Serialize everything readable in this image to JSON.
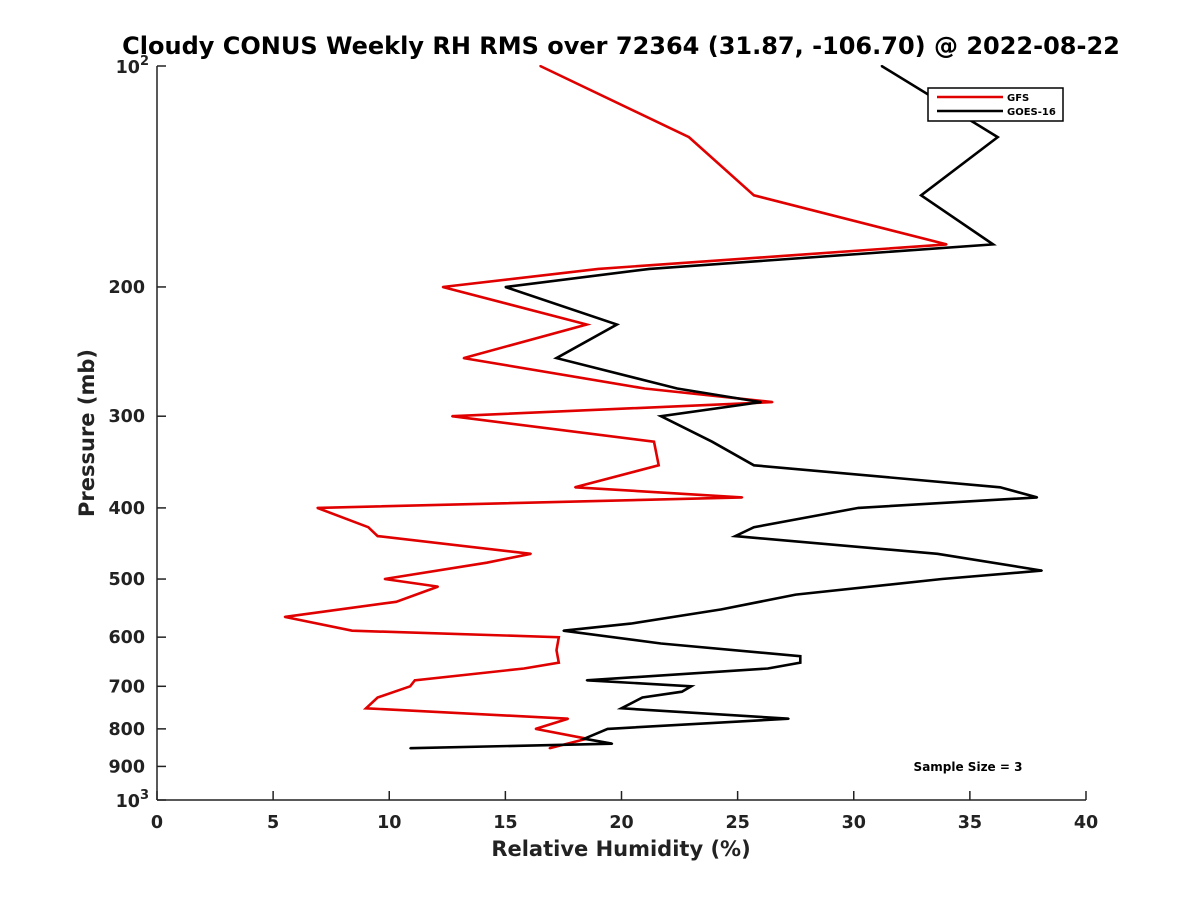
{
  "chart_data": {
    "type": "line",
    "title": "Cloudy CONUS Weekly RH RMS over 72364 (31.87, -106.70) @ 2022-08-22",
    "xlabel": "Relative Humidity (%)",
    "ylabel": "Pressure (mb)",
    "xlim": [
      0,
      40
    ],
    "ylim": [
      1000,
      100
    ],
    "y_scale": "log",
    "y_reversed": true,
    "x_ticks": [
      "0",
      "5",
      "10",
      "15",
      "20",
      "25",
      "30",
      "35",
      "40"
    ],
    "y_ticks": [
      {
        "value": 100,
        "base": "10",
        "sup": "2"
      },
      {
        "value": 200,
        "label": "200"
      },
      {
        "value": 300,
        "label": "300"
      },
      {
        "value": 400,
        "label": "400"
      },
      {
        "value": 500,
        "label": "500"
      },
      {
        "value": 600,
        "label": "600"
      },
      {
        "value": 700,
        "label": "700"
      },
      {
        "value": 800,
        "label": "800"
      },
      {
        "value": 900,
        "label": "900"
      },
      {
        "value": 1000,
        "base": "10",
        "sup": "3"
      }
    ],
    "legend_position": "top-right",
    "annotation": "Sample Size = 3",
    "series": [
      {
        "name": "GFS",
        "color": "#e00000",
        "points": [
          [
            16.5,
            100
          ],
          [
            22.9,
            125
          ],
          [
            25.7,
            150
          ],
          [
            34.0,
            175
          ],
          [
            19.0,
            189
          ],
          [
            12.3,
            200
          ],
          [
            18.5,
            225
          ],
          [
            13.2,
            250
          ],
          [
            21.0,
            275
          ],
          [
            26.5,
            287
          ],
          [
            12.7,
            300
          ],
          [
            21.4,
            325
          ],
          [
            21.6,
            350
          ],
          [
            18.0,
            375
          ],
          [
            25.2,
            387
          ],
          [
            6.9,
            400
          ],
          [
            9.1,
            425
          ],
          [
            9.5,
            437
          ],
          [
            16.1,
            462
          ],
          [
            14.2,
            475
          ],
          [
            9.8,
            500
          ],
          [
            12.1,
            512
          ],
          [
            10.3,
            537
          ],
          [
            5.5,
            563
          ],
          [
            8.4,
            588
          ],
          [
            17.3,
            600
          ],
          [
            17.2,
            625
          ],
          [
            17.3,
            650
          ],
          [
            15.8,
            662
          ],
          [
            11.1,
            687
          ],
          [
            10.9,
            700
          ],
          [
            9.5,
            725
          ],
          [
            9.0,
            750
          ],
          [
            17.7,
            775
          ],
          [
            16.3,
            800
          ],
          [
            18.5,
            825
          ],
          [
            16.9,
            850
          ]
        ]
      },
      {
        "name": "GOES-16",
        "color": "#000000",
        "points": [
          [
            31.2,
            100
          ],
          [
            36.2,
            125
          ],
          [
            32.9,
            150
          ],
          [
            36.0,
            175
          ],
          [
            21.2,
            189
          ],
          [
            15.0,
            200
          ],
          [
            19.8,
            225
          ],
          [
            17.2,
            250
          ],
          [
            22.4,
            275
          ],
          [
            26.0,
            287
          ],
          [
            21.7,
            300
          ],
          [
            23.9,
            325
          ],
          [
            25.7,
            350
          ],
          [
            36.3,
            375
          ],
          [
            37.9,
            387
          ],
          [
            30.2,
            400
          ],
          [
            25.7,
            425
          ],
          [
            24.9,
            437
          ],
          [
            33.6,
            462
          ],
          [
            38.1,
            487
          ],
          [
            33.8,
            500
          ],
          [
            27.5,
            525
          ],
          [
            24.3,
            550
          ],
          [
            20.4,
            575
          ],
          [
            17.5,
            588
          ],
          [
            21.7,
            612
          ],
          [
            27.7,
            637
          ],
          [
            27.7,
            650
          ],
          [
            26.3,
            662
          ],
          [
            18.5,
            687
          ],
          [
            23.0,
            700
          ],
          [
            22.6,
            712
          ],
          [
            20.9,
            725
          ],
          [
            20.0,
            750
          ],
          [
            27.2,
            775
          ],
          [
            19.4,
            800
          ],
          [
            18.4,
            825
          ],
          [
            19.6,
            838
          ],
          [
            10.9,
            850
          ]
        ]
      }
    ]
  }
}
